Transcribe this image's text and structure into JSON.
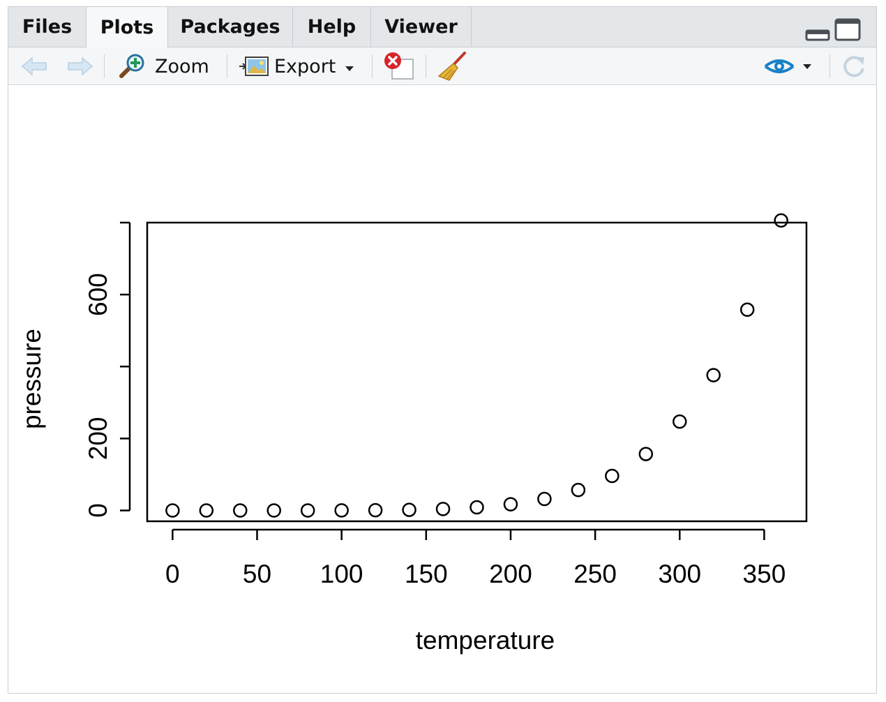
{
  "tabs": [
    {
      "label": "Files"
    },
    {
      "label": "Plots"
    },
    {
      "label": "Packages"
    },
    {
      "label": "Help"
    },
    {
      "label": "Viewer"
    }
  ],
  "active_tab": "Plots",
  "toolbar": {
    "zoom_label": "Zoom",
    "export_label": "Export",
    "icons": [
      "back-arrow-icon",
      "forward-arrow-icon",
      "zoom-icon",
      "export-icon",
      "remove-plot-icon",
      "clear-all-icon",
      "publish-icon",
      "refresh-icon"
    ]
  },
  "chart_data": {
    "type": "scatter",
    "xlabel": "temperature",
    "ylabel": "pressure",
    "xlim": [
      -15,
      375
    ],
    "ylim": [
      -30,
      800
    ],
    "x_ticks": [
      0,
      50,
      100,
      150,
      200,
      250,
      300,
      350
    ],
    "y_ticks": [
      0,
      200,
      400,
      600,
      800
    ],
    "y_tick_labels_shown": [
      0,
      200,
      600
    ],
    "x": [
      0,
      20,
      40,
      60,
      80,
      100,
      120,
      140,
      160,
      180,
      200,
      220,
      240,
      260,
      280,
      300,
      320,
      340,
      360
    ],
    "y": [
      0.0002,
      0.0012,
      0.006,
      0.03,
      0.09,
      0.27,
      0.75,
      1.85,
      4.2,
      8.8,
      17.3,
      32.1,
      57.0,
      96.0,
      157.0,
      247.0,
      376.0,
      558.0,
      806.0
    ],
    "marker": "open-circle",
    "grid": false,
    "legend": "none"
  }
}
